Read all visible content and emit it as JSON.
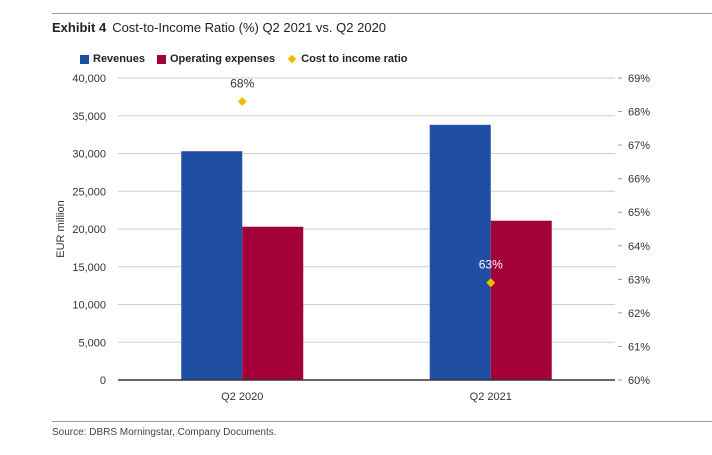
{
  "header": {
    "exhibit": "Exhibit 4",
    "title": "Cost-to-Income Ratio (%) Q2 2021 vs. Q2 2020"
  },
  "footer": {
    "source": "Source: DBRS Morningstar, Company Documents."
  },
  "colors": {
    "revenues": "#1f4ea3",
    "operating_expenses": "#a3003a",
    "ratio": "#f5b800",
    "gridline": "#cfcfcf",
    "axis": "#333333"
  },
  "chart_data": {
    "type": "bar",
    "title": "Cost-to-Income Ratio (%) Q2 2021 vs. Q2 2020",
    "categories": [
      "Q2 2020",
      "Q2 2021"
    ],
    "series": [
      {
        "name": "Revenues",
        "axis": "left",
        "values": [
          30300,
          33800
        ]
      },
      {
        "name": "Operating expenses",
        "axis": "left",
        "values": [
          20300,
          21100
        ]
      },
      {
        "name": "Cost to income ratio",
        "axis": "right",
        "marker": "diamond",
        "values": [
          68.3,
          62.9
        ],
        "labels": [
          "68%",
          "63%"
        ]
      }
    ],
    "ylabel": "EUR million",
    "ylim": [
      0,
      40000
    ],
    "yticks": [
      0,
      5000,
      10000,
      15000,
      20000,
      25000,
      30000,
      35000,
      40000
    ],
    "ytick_labels": [
      "0",
      "5,000",
      "10,000",
      "15,000",
      "20,000",
      "25,000",
      "30,000",
      "35,000",
      "40,000"
    ],
    "y2lim": [
      60,
      69
    ],
    "y2ticks": [
      60,
      61,
      62,
      63,
      64,
      65,
      66,
      67,
      68,
      69
    ],
    "y2tick_labels": [
      "60%",
      "61%",
      "62%",
      "63%",
      "64%",
      "65%",
      "66%",
      "67%",
      "68%",
      "69%"
    ],
    "grid": true,
    "legend": "top-left"
  }
}
